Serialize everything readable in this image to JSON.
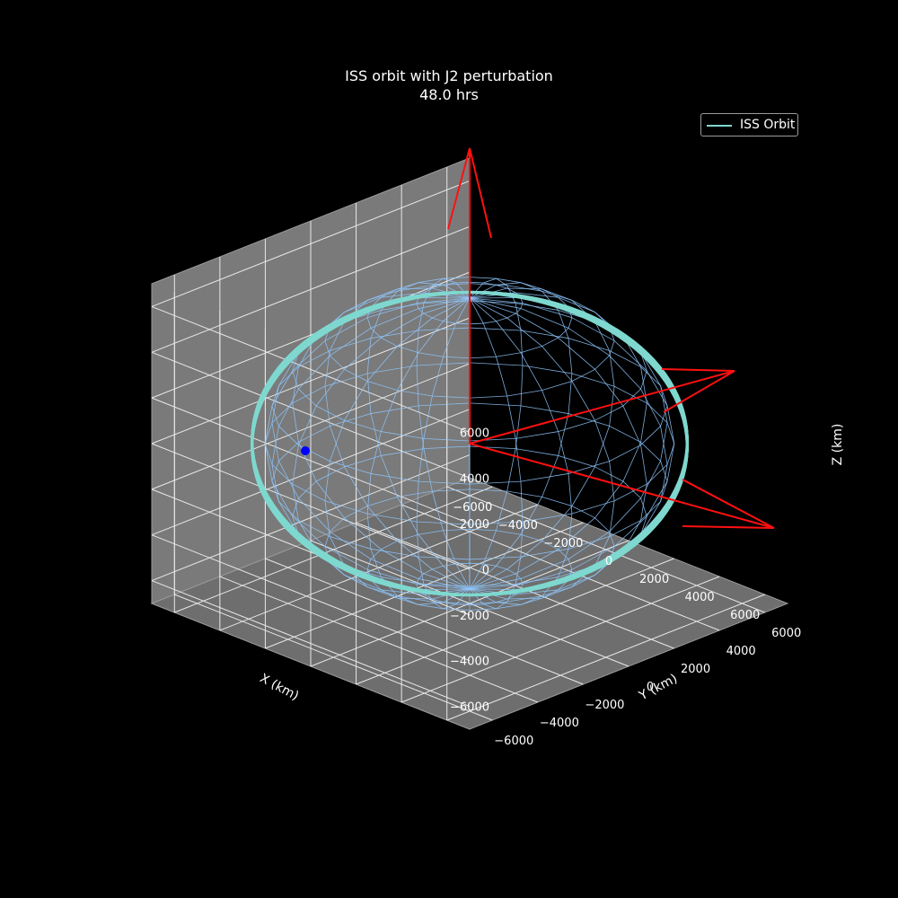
{
  "chart_data": {
    "type": "line",
    "projection": "3d",
    "title": "ISS orbit with J2 perturbation",
    "subtitle": "48.0 hrs",
    "xlabel": "X (km)",
    "ylabel": "Y (km)",
    "zlabel": "Z (km)",
    "xlim": [
      -7000,
      7000
    ],
    "ylim": [
      -7000,
      7000
    ],
    "zlim": [
      -7000,
      7000
    ],
    "x_ticks": [
      -6000,
      -4000,
      -2000,
      0,
      2000,
      4000,
      6000
    ],
    "y_ticks": [
      -6000,
      -4000,
      -2000,
      0,
      2000,
      4000,
      6000
    ],
    "z_ticks": [
      -6000,
      -4000,
      -2000,
      0,
      2000,
      4000,
      6000
    ],
    "x_tick_labels": [
      "−6000",
      "−4000",
      "−2000",
      "0",
      "2000",
      "4000",
      "6000"
    ],
    "y_tick_labels": [
      "−6000",
      "−4000",
      "−2000",
      "0",
      "2000",
      "4000",
      "6000"
    ],
    "z_tick_labels": [
      "−6000",
      "−4000",
      "−2000",
      "0",
      "2000",
      "4000",
      "6000"
    ],
    "grid": true,
    "legend": {
      "position": "top-right",
      "entries": [
        "ISS Orbit"
      ]
    },
    "series": [
      {
        "name": "ISS Orbit",
        "kind": "orbit-band",
        "semi_major_axis_km": 6780,
        "inclination_deg": 51.6,
        "orbit_plane_normal": [
          0.35,
          0.35,
          0.87
        ],
        "color": "#7fd8cf"
      }
    ],
    "earth_sphere": {
      "radius_km": 6371,
      "style": "wireframe",
      "color": "#8fc8ff"
    },
    "current_position_km": [
      -900,
      -6700,
      80
    ],
    "marker_color": "#0000ff",
    "frame_axes": {
      "length_km": 12000,
      "color": "#ff1010"
    },
    "pane_color": "#7a7a7a",
    "background": "#000000"
  }
}
